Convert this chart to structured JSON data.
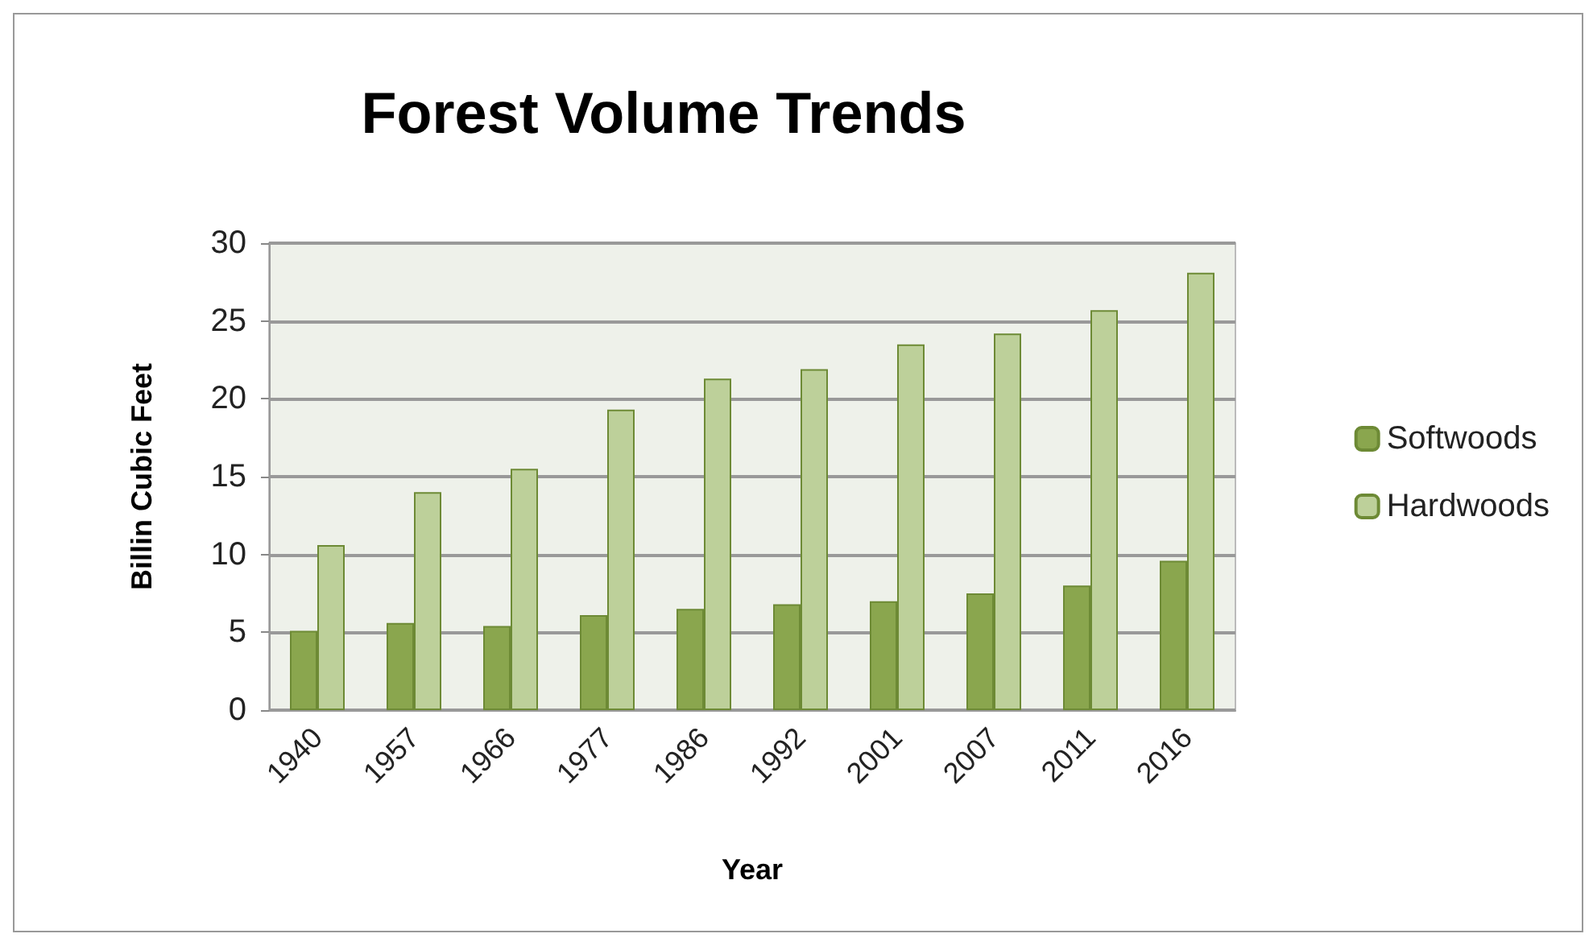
{
  "chart_data": {
    "type": "bar",
    "title": "Forest Volume Trends",
    "xlabel": "Year",
    "ylabel": "Billin Cubic Feet",
    "categories": [
      "1940",
      "1957",
      "1966",
      "1977",
      "1986",
      "1992",
      "2001",
      "2007",
      "2011",
      "2016"
    ],
    "series": [
      {
        "name": "Softwoods",
        "color": "#8aa64e",
        "values": [
          5.1,
          5.6,
          5.4,
          6.1,
          6.5,
          6.8,
          7.0,
          7.5,
          8.0,
          9.6
        ]
      },
      {
        "name": "Hardwoods",
        "color": "#bdd09a",
        "values": [
          10.6,
          14.0,
          15.5,
          19.3,
          21.3,
          21.9,
          23.5,
          24.2,
          25.7,
          28.1
        ]
      }
    ],
    "ylim": [
      0,
      30
    ],
    "yticks": [
      0,
      5,
      10,
      15,
      20,
      25,
      30
    ],
    "grid": "y",
    "legend": "right"
  }
}
